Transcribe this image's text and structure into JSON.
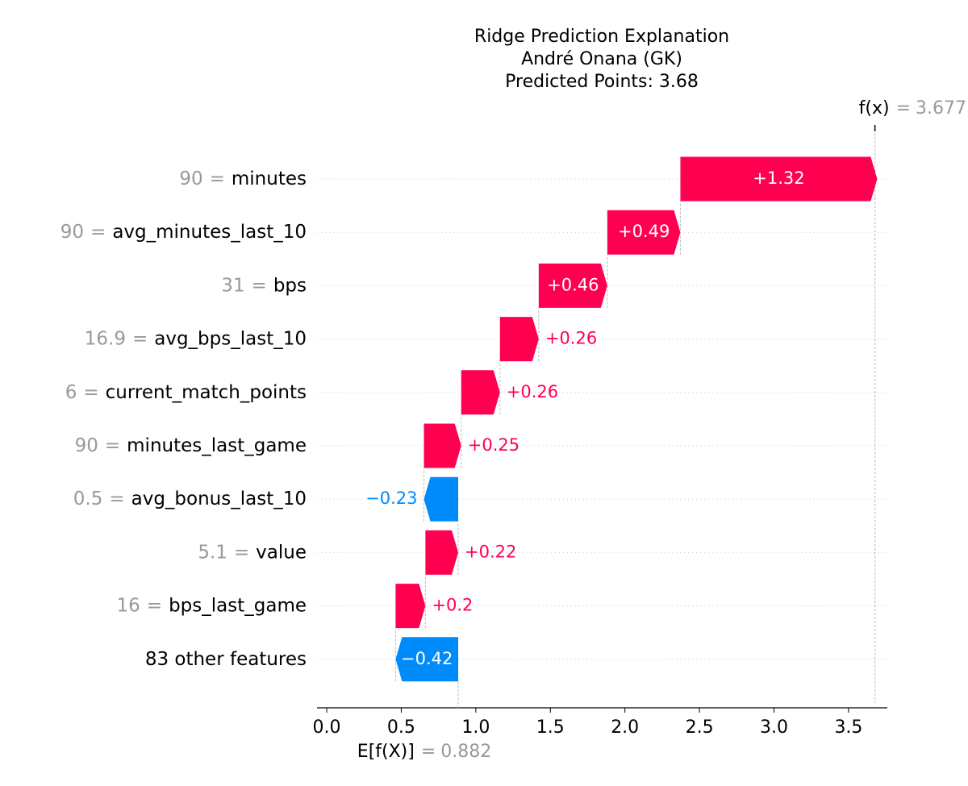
{
  "chart_data": {
    "type": "waterfall",
    "title": [
      "Ridge Prediction Explanation",
      "André Onana (GK)",
      "Predicted Points: 3.68"
    ],
    "features": [
      "minutes",
      "avg_minutes_last_10",
      "bps",
      "avg_bps_last_10",
      "current_match_points",
      "minutes_last_game",
      "avg_bonus_last_10",
      "value",
      "bps_last_game",
      "83 other features"
    ],
    "feature_values": [
      90,
      90,
      31,
      16.9,
      6,
      90,
      0.5,
      5.1,
      16,
      null
    ],
    "values": [
      1.32,
      0.49,
      0.46,
      0.26,
      0.26,
      0.25,
      -0.23,
      0.22,
      0.2,
      -0.42
    ],
    "value_labels": [
      "+1.32",
      "+0.49",
      "+0.46",
      "+0.26",
      "+0.26",
      "+0.25",
      "−0.23",
      "+0.22",
      "+0.2",
      "−0.42"
    ],
    "label_separator": "=",
    "base_label": "E[f(X)]",
    "base_value": 0.882,
    "output_label": "f(x)",
    "output_value": 3.677,
    "positive_color": "#ff0051",
    "negative_color": "#008bfb",
    "xlim": [
      -0.065,
      3.76
    ],
    "xticks": [
      {
        "value": 0,
        "label": "0.0"
      },
      0.5,
      {
        "value": 1,
        "label": "1.0"
      },
      1.5,
      {
        "value": 2,
        "label": "2.0"
      },
      2.5,
      {
        "value": 3,
        "label": "3.0"
      },
      3.5
    ]
  }
}
